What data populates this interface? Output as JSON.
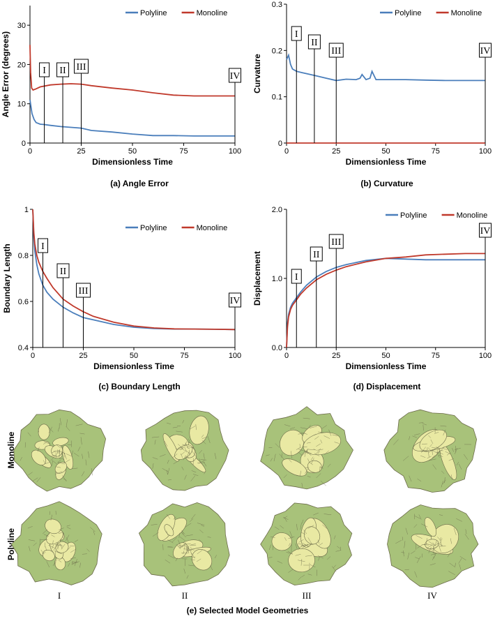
{
  "colors": {
    "polyline": "#4a7ebb",
    "monoline": "#c0392b",
    "tissue_fill": "#e9e9a3",
    "tissue_outer": "#a8c27a",
    "cell_line": "#6b6b4a"
  },
  "charts": {
    "a": {
      "type": "line",
      "caption": "(a) Angle Error",
      "xlabel": "Dimensionless Time",
      "ylabel": "Angle Error  (degrees)",
      "xlim": [
        0,
        100
      ],
      "ylim": [
        0,
        35
      ],
      "xticks": [
        "0",
        "25",
        "50",
        "75",
        "100"
      ],
      "xtick_values": [
        0,
        25,
        50,
        75,
        100
      ],
      "yticks": [
        "0",
        "10",
        "20",
        "30"
      ],
      "ytick_values": [
        0,
        10,
        20,
        30
      ],
      "legend": [
        "Polyline",
        "Monoline"
      ],
      "series": [
        {
          "name": "Polyline",
          "x": [
            0,
            1,
            2,
            3,
            5,
            7,
            10,
            15,
            20,
            25,
            30,
            40,
            50,
            60,
            70,
            80,
            90,
            100
          ],
          "y": [
            11,
            7.5,
            6,
            5.2,
            4.8,
            4.7,
            4.5,
            4.2,
            4.0,
            3.8,
            3.2,
            2.8,
            2.3,
            1.9,
            1.9,
            1.8,
            1.8,
            1.8
          ]
        },
        {
          "name": "Monoline",
          "x": [
            0,
            0.3,
            0.8,
            1.5,
            3,
            5,
            10,
            15,
            20,
            25,
            30,
            40,
            50,
            60,
            70,
            80,
            90,
            100
          ],
          "y": [
            25,
            18,
            14,
            13.5,
            13.8,
            14.3,
            14.8,
            15.0,
            15.1,
            15.0,
            14.6,
            14.0,
            13.5,
            12.8,
            12.2,
            12.0,
            12.0,
            12.0
          ]
        }
      ],
      "markers": [
        {
          "label": "I",
          "x": 7
        },
        {
          "label": "II",
          "x": 16
        },
        {
          "label": "III",
          "x": 25
        },
        {
          "label": "IV",
          "x": 100
        }
      ]
    },
    "b": {
      "type": "line",
      "caption": "(b) Curvature",
      "xlabel": "Dimensionless Time",
      "ylabel": "Curvature",
      "xlim": [
        0,
        100
      ],
      "ylim": [
        0,
        0.3
      ],
      "xticks": [
        "0",
        "25",
        "50",
        "75",
        "100"
      ],
      "xtick_values": [
        0,
        25,
        50,
        75,
        100
      ],
      "yticks": [
        "0",
        "0.1",
        "0.2",
        "0.3"
      ],
      "ytick_values": [
        0,
        0.1,
        0.2,
        0.3
      ],
      "legend": [
        "Polyline",
        "Monoline"
      ],
      "series": [
        {
          "name": "Polyline",
          "x": [
            0,
            1,
            2,
            3,
            5,
            8,
            10,
            15,
            20,
            25,
            30,
            35,
            37,
            38,
            40,
            42,
            43,
            45,
            50,
            60,
            70,
            80,
            90,
            100
          ],
          "y": [
            0.18,
            0.19,
            0.17,
            0.16,
            0.155,
            0.152,
            0.15,
            0.145,
            0.14,
            0.135,
            0.138,
            0.137,
            0.14,
            0.148,
            0.137,
            0.14,
            0.155,
            0.137,
            0.137,
            0.137,
            0.136,
            0.135,
            0.135,
            0.135
          ]
        },
        {
          "name": "Monoline",
          "x": [
            0,
            100
          ],
          "y": [
            0,
            0
          ]
        }
      ],
      "markers": [
        {
          "label": "I",
          "x": 5
        },
        {
          "label": "II",
          "x": 14
        },
        {
          "label": "III",
          "x": 25
        },
        {
          "label": "IV",
          "x": 100
        }
      ]
    },
    "c": {
      "type": "line",
      "caption": "(c) Boundary Length",
      "xlabel": "Dimensionless Time",
      "ylabel": "Boundary Length",
      "xlim": [
        0,
        100
      ],
      "ylim": [
        0.4,
        1.0
      ],
      "xticks": [
        "0",
        "25",
        "50",
        "75",
        "100"
      ],
      "xtick_values": [
        0,
        25,
        50,
        75,
        100
      ],
      "yticks": [
        "0.4",
        "0.6",
        "0.8",
        "1"
      ],
      "ytick_values": [
        0.4,
        0.6,
        0.8,
        1.0
      ],
      "legend": [
        "Polyline",
        "Monoline"
      ],
      "series": [
        {
          "name": "Polyline",
          "x": [
            0,
            0.5,
            1,
            2,
            3,
            5,
            7,
            10,
            15,
            20,
            25,
            30,
            40,
            50,
            60,
            70,
            80,
            90,
            100
          ],
          "y": [
            1.0,
            0.88,
            0.82,
            0.76,
            0.72,
            0.67,
            0.64,
            0.61,
            0.575,
            0.55,
            0.53,
            0.52,
            0.5,
            0.488,
            0.482,
            0.48,
            0.48,
            0.479,
            0.478
          ]
        },
        {
          "name": "Monoline",
          "x": [
            0,
            0.5,
            1,
            2,
            3,
            5,
            7,
            10,
            15,
            20,
            25,
            30,
            40,
            50,
            60,
            70,
            80,
            90,
            100
          ],
          "y": [
            1.0,
            0.9,
            0.85,
            0.8,
            0.77,
            0.73,
            0.7,
            0.66,
            0.61,
            0.58,
            0.555,
            0.535,
            0.51,
            0.493,
            0.485,
            0.481,
            0.48,
            0.479,
            0.478
          ]
        }
      ],
      "markers": [
        {
          "label": "I",
          "x": 5
        },
        {
          "label": "II",
          "x": 15
        },
        {
          "label": "III",
          "x": 25
        },
        {
          "label": "IV",
          "x": 100
        }
      ]
    },
    "d": {
      "type": "line",
      "caption": "(d) Displacement",
      "xlabel": "Dimensionless Time",
      "ylabel": "Displacement",
      "xlim": [
        0,
        100
      ],
      "ylim": [
        0,
        2.0
      ],
      "xticks": [
        "0",
        "25",
        "50",
        "75",
        "100"
      ],
      "xtick_values": [
        0,
        25,
        50,
        75,
        100
      ],
      "yticks": [
        "0.0",
        "1.0",
        "2.0"
      ],
      "ytick_values": [
        0,
        1.0,
        2.0
      ],
      "legend": [
        "Polyline",
        "Monoline"
      ],
      "series": [
        {
          "name": "Polyline",
          "x": [
            0,
            0.5,
            1,
            2,
            3,
            5,
            7,
            10,
            15,
            20,
            25,
            30,
            40,
            50,
            60,
            70,
            80,
            90,
            100
          ],
          "y": [
            0,
            0.35,
            0.48,
            0.58,
            0.64,
            0.72,
            0.8,
            0.9,
            1.02,
            1.1,
            1.16,
            1.2,
            1.26,
            1.29,
            1.28,
            1.27,
            1.27,
            1.27,
            1.27
          ]
        },
        {
          "name": "Monoline",
          "x": [
            0,
            0.5,
            1,
            2,
            3,
            5,
            7,
            10,
            15,
            20,
            25,
            30,
            40,
            50,
            60,
            70,
            80,
            90,
            100
          ],
          "y": [
            0,
            0.3,
            0.44,
            0.55,
            0.61,
            0.69,
            0.77,
            0.86,
            0.98,
            1.06,
            1.12,
            1.17,
            1.24,
            1.29,
            1.31,
            1.34,
            1.35,
            1.36,
            1.36
          ]
        }
      ],
      "markers": [
        {
          "label": "I",
          "x": 5
        },
        {
          "label": "II",
          "x": 15
        },
        {
          "label": "III",
          "x": 25
        },
        {
          "label": "IV",
          "x": 100
        }
      ]
    }
  },
  "geometries": {
    "caption": "(e) Selected Model Geometries",
    "row_labels": [
      "Monoline",
      "Polyline"
    ],
    "column_labels": [
      "I",
      "II",
      "III",
      "IV"
    ]
  }
}
